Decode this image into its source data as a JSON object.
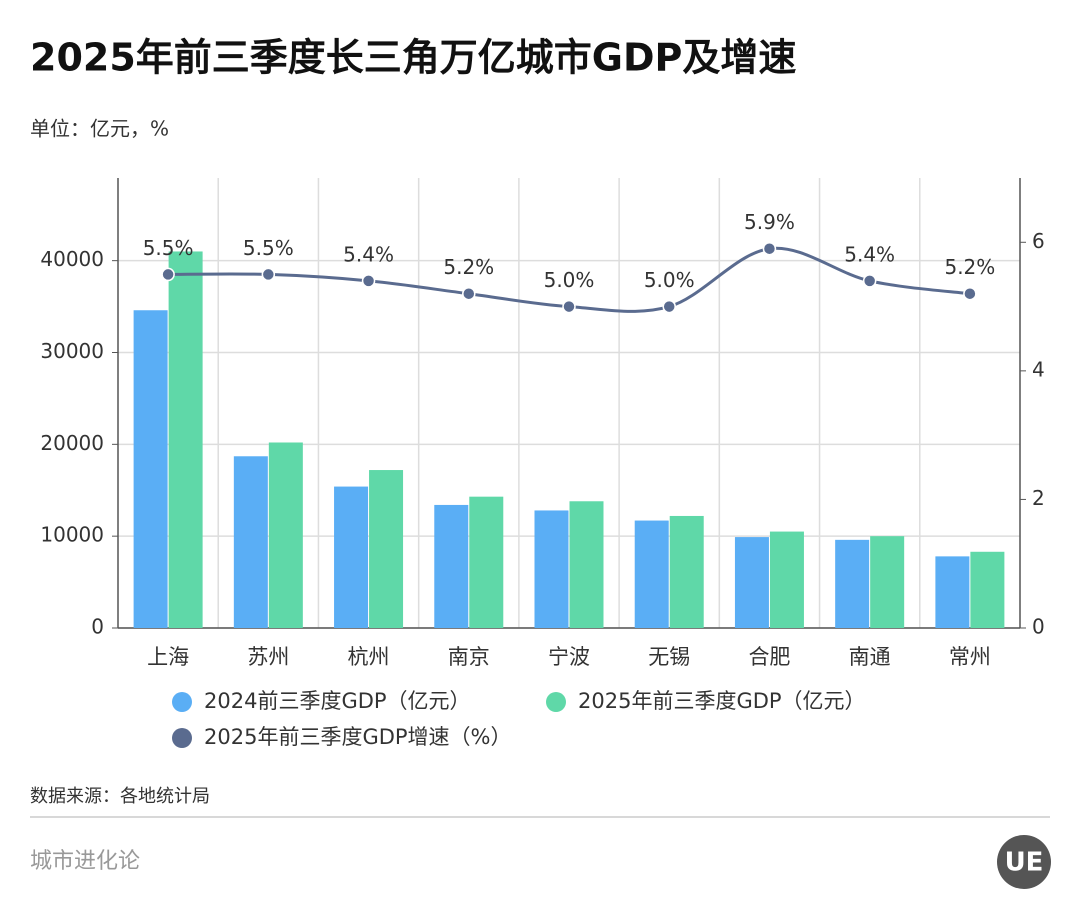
{
  "chart_data": {
    "type": "bar",
    "title": "2025年前三季度长三角万亿城市GDP及增速",
    "subtitle": "单位：亿元，%",
    "categories": [
      "上海",
      "苏州",
      "杭州",
      "南京",
      "宁波",
      "无锡",
      "合肥",
      "南通",
      "常州"
    ],
    "series": [
      {
        "name": "2024前三季度GDP（亿元）",
        "color": "#5aaef5",
        "type": "bar",
        "values": [
          34600,
          18700,
          15400,
          13400,
          12800,
          11700,
          9900,
          9600,
          7800
        ]
      },
      {
        "name": "2025年前三季度GDP（亿元）",
        "color": "#5fd8a8",
        "type": "bar",
        "values": [
          41000,
          20200,
          17200,
          14300,
          13800,
          12200,
          10500,
          10000,
          8300
        ]
      },
      {
        "name": "2025年前三季度GDP增速（%）",
        "color": "#5a6b8f",
        "type": "line",
        "axis": "y2",
        "values": [
          5.5,
          5.5,
          5.4,
          5.2,
          5.0,
          5.0,
          5.9,
          5.4,
          5.2
        ],
        "value_labels": [
          "5.5%",
          "5.5%",
          "5.4%",
          "5.2%",
          "5.0%",
          "5.0%",
          "5.9%",
          "5.4%",
          "5.2%"
        ]
      }
    ],
    "ylim": [
      0,
      49000
    ],
    "yticks": [
      0,
      10000,
      20000,
      30000,
      40000
    ],
    "y2lim": [
      0,
      7
    ],
    "y2ticks": [
      0,
      2,
      4,
      6
    ],
    "grid": true
  },
  "source": "数据来源：各地统计局",
  "footer": "城市进化论",
  "logo": "UE"
}
